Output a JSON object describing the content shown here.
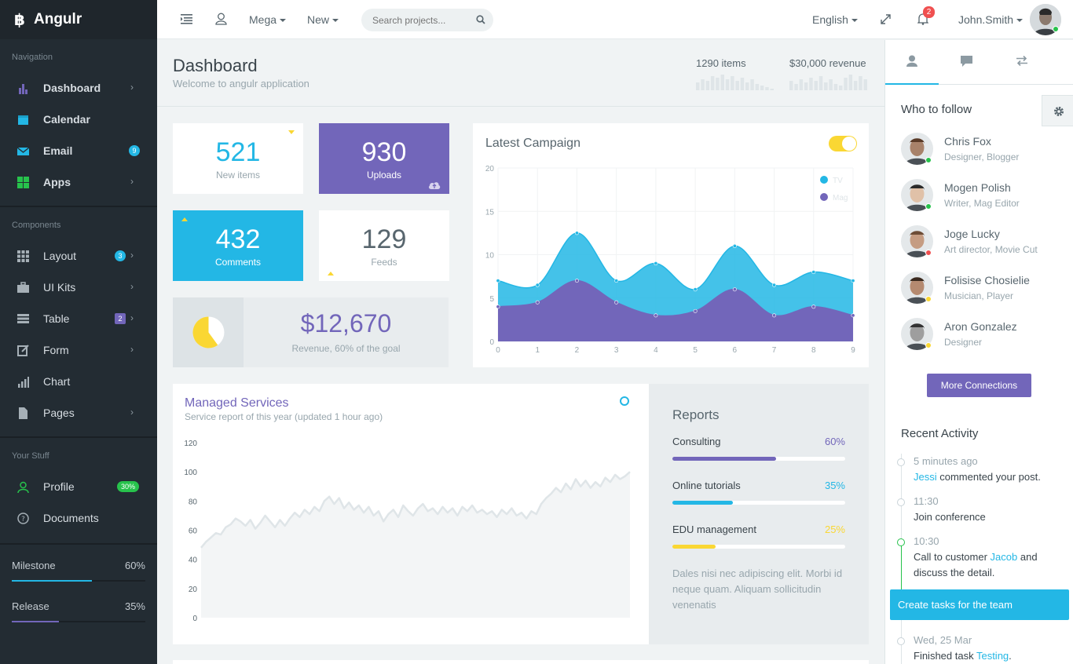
{
  "brand": {
    "name": "Angulr"
  },
  "sidebar": {
    "nav_heading": "Navigation",
    "nav_items": [
      {
        "label": "Dashboard",
        "icon": "bar-chart-icon",
        "color": "#7266ba"
      },
      {
        "label": "Calendar",
        "icon": "calendar-icon",
        "color": "#23b7e5"
      },
      {
        "label": "Email",
        "icon": "envelope-icon",
        "color": "#23b7e5",
        "badge": "9"
      },
      {
        "label": "Apps",
        "icon": "grid-icon",
        "color": "#27c24c"
      }
    ],
    "components_heading": "Components",
    "component_items": [
      {
        "label": "Layout",
        "icon": "grid-icon",
        "badge": "3"
      },
      {
        "label": "UI Kits",
        "icon": "briefcase-icon"
      },
      {
        "label": "Table",
        "icon": "table-icon",
        "badge": "2"
      },
      {
        "label": "Form",
        "icon": "edit-icon"
      },
      {
        "label": "Chart",
        "icon": "bar-chart-icon"
      },
      {
        "label": "Pages",
        "icon": "file-icon"
      }
    ],
    "stuff_heading": "Your Stuff",
    "stuff_items": [
      {
        "label": "Profile",
        "icon": "user-icon",
        "badge": "30%"
      },
      {
        "label": "Documents",
        "icon": "question-icon"
      }
    ],
    "milestone": {
      "label": "Milestone",
      "value": "60%",
      "fraction": 0.6,
      "color": "#23b7e5"
    },
    "release": {
      "label": "Release",
      "value": "35%",
      "fraction": 0.35,
      "color": "#7266ba"
    }
  },
  "header": {
    "mega": "Mega",
    "new": "New",
    "search_placeholder": "Search projects...",
    "language": "English",
    "notifications": "2",
    "user": "John.Smith"
  },
  "page": {
    "title": "Dashboard",
    "subtitle": "Welcome to angulr application",
    "items_label": "1290 items",
    "revenue_label": "$30,000 revenue",
    "items_spark": [
      5,
      7,
      6,
      9,
      8,
      10,
      7,
      9,
      6,
      8,
      5,
      7,
      4,
      3,
      2,
      1
    ],
    "revenue_spark": [
      6,
      4,
      7,
      5,
      8,
      6,
      9,
      5,
      7,
      4,
      3,
      8,
      10,
      6,
      9,
      7
    ]
  },
  "stats": {
    "new_items": {
      "value": "521",
      "label": "New items"
    },
    "uploads": {
      "value": "930",
      "label": "Uploads"
    },
    "comments": {
      "value": "432",
      "label": "Comments"
    },
    "feeds": {
      "value": "129",
      "label": "Feeds"
    },
    "revenue": {
      "value": "$12,670",
      "label": "Revenue, 60% of the goal",
      "fraction": 0.6
    }
  },
  "campaign": {
    "title": "Latest Campaign"
  },
  "chart_data": [
    {
      "type": "area",
      "title": "Latest Campaign",
      "x": [
        0,
        1,
        2,
        3,
        4,
        5,
        6,
        7,
        8,
        9
      ],
      "ylim": [
        0,
        20
      ],
      "yticks": [
        0,
        5,
        10,
        15,
        20
      ],
      "series": [
        {
          "name": "TV",
          "color": "#23b7e5",
          "values": [
            7,
            6.5,
            12.5,
            7,
            9,
            6,
            11,
            6.5,
            8,
            7
          ]
        },
        {
          "name": "Mag",
          "color": "#7266ba",
          "values": [
            4,
            4.5,
            7,
            4.5,
            3,
            3.5,
            6,
            3,
            4,
            3
          ]
        }
      ],
      "legend": "top-right",
      "grid": true
    },
    {
      "type": "area",
      "title": "Managed Services",
      "ylim": [
        0,
        120
      ],
      "yticks": [
        0,
        20,
        40,
        60,
        80,
        100,
        120
      ],
      "series": [
        {
          "name": "",
          "color": "#dfe5e8",
          "values": [
            48,
            52,
            55,
            58,
            57,
            62,
            64,
            68,
            66,
            63,
            67,
            61,
            65,
            70,
            66,
            62,
            67,
            63,
            68,
            72,
            69,
            74,
            71,
            76,
            73,
            80,
            83,
            78,
            82,
            75,
            79,
            74,
            77,
            72,
            76,
            70,
            73,
            66,
            71,
            74,
            69,
            77,
            73,
            70,
            75,
            78,
            73,
            75,
            71,
            76,
            72,
            75,
            70,
            76,
            73,
            77,
            72,
            74,
            71,
            73,
            69,
            74,
            71,
            75,
            70,
            72,
            68,
            73,
            71,
            78,
            82,
            85,
            89,
            86,
            92,
            88,
            95,
            90,
            94,
            89,
            93,
            90,
            96,
            93,
            98,
            95,
            97,
            100
          ]
        }
      ],
      "grid": false
    }
  ],
  "services": {
    "title": "Managed Services",
    "subtitle": "Service report of this year (updated 1 hour ago)"
  },
  "reports": {
    "title": "Reports",
    "items": [
      {
        "label": "Consulting",
        "value": "60%",
        "fraction": 0.6,
        "color": "#7266ba"
      },
      {
        "label": "Online tutorials",
        "value": "35%",
        "fraction": 0.35,
        "color": "#23b7e5"
      },
      {
        "label": "EDU management",
        "value": "25%",
        "fraction": 0.25,
        "color": "#fad733"
      }
    ],
    "text": "Dales nisi nec adipiscing elit. Morbi id neque quam. Aliquam sollicitudin venenatis"
  },
  "right": {
    "follow_title": "Who to follow",
    "people": [
      {
        "name": "Chris Fox",
        "role": "Designer, Blogger",
        "status": "#27c24c"
      },
      {
        "name": "Mogen Polish",
        "role": "Writer, Mag Editor",
        "status": "#27c24c"
      },
      {
        "name": "Joge Lucky",
        "role": "Art director, Movie Cut",
        "status": "#f05050"
      },
      {
        "name": "Folisise Chosielie",
        "role": "Musician, Player",
        "status": "#fad733"
      },
      {
        "name": "Aron Gonzalez",
        "role": "Designer",
        "status": "#fad733"
      }
    ],
    "more_button": "More Connections",
    "activity_title": "Recent Activity",
    "activity": [
      {
        "time": "5 minutes ago",
        "link": "Jessi",
        "text": " commented your post."
      },
      {
        "time": "11:30",
        "text": "Join conference"
      },
      {
        "time": "10:30",
        "pre": "Call to customer ",
        "link": "Jacob",
        "text": " and discuss the detail."
      },
      {
        "time": "Wed, 25 Mar",
        "pre": "Finished task ",
        "link": "Testing",
        "text": "."
      }
    ],
    "create_task": "Create tasks for the team"
  },
  "colors": {
    "primary": "#7266ba",
    "info": "#23b7e5",
    "success": "#27c24c",
    "warning": "#fad733",
    "danger": "#f05050",
    "dark": "#232c33"
  }
}
